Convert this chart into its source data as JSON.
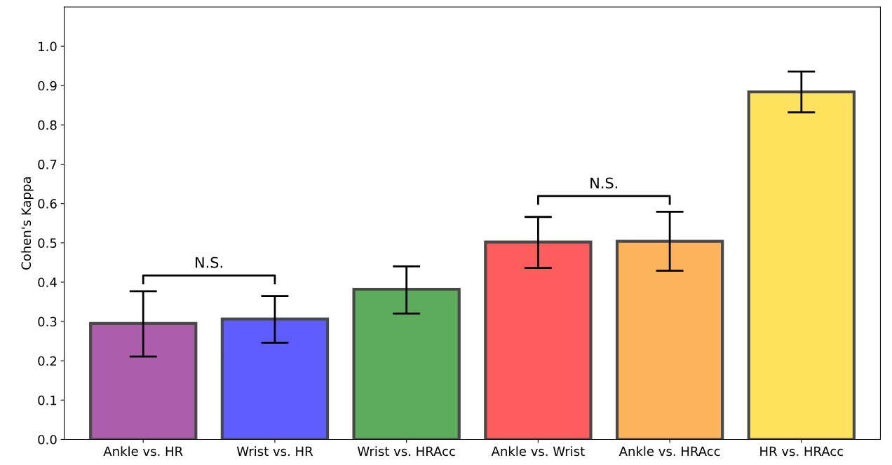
{
  "chart_data": {
    "type": "bar",
    "ylabel": "Cohen's Kappa",
    "categories": [
      "Ankle vs. HR",
      "Wrist vs. HR",
      "Wrist vs. HRAcc",
      "Ankle vs. Wrist",
      "Ankle vs. HRAcc",
      "HR vs. HRAcc"
    ],
    "values": [
      0.295,
      0.306,
      0.382,
      0.502,
      0.504,
      0.884
    ],
    "errors": [
      [
        0.211,
        0.377
      ],
      [
        0.246,
        0.365
      ],
      [
        0.32,
        0.44
      ],
      [
        0.436,
        0.566
      ],
      [
        0.429,
        0.579
      ],
      [
        0.832,
        0.936
      ]
    ],
    "colors": [
      "#a855a8",
      "#5555fe",
      "#55a855",
      "#fe5555",
      "#feb055",
      "#fee055"
    ],
    "ylim": [
      0,
      1.1
    ],
    "yticks": [
      {
        "value": 0,
        "label": "0.0"
      },
      0.1,
      0.2,
      0.3,
      0.4,
      0.5,
      0.6,
      0.7,
      0.8,
      0.9,
      {
        "value": 1,
        "label": "1.0"
      }
    ],
    "annotations": [
      "N.S.",
      "N.S."
    ]
  }
}
